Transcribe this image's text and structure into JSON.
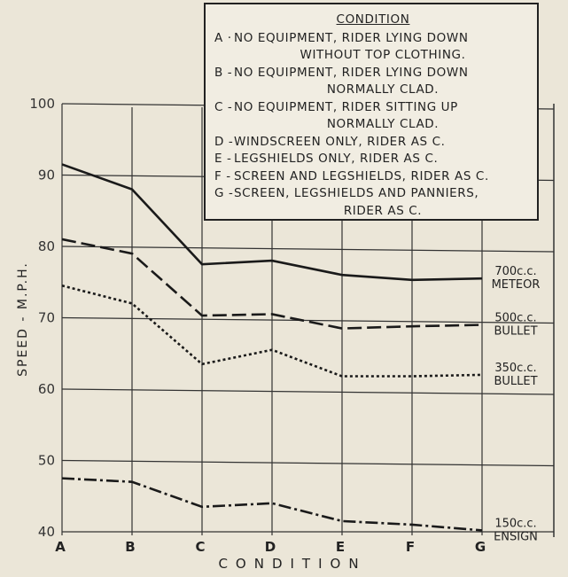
{
  "chart_data": {
    "type": "line",
    "title": "",
    "xlabel": "CONDITION",
    "ylabel": "SPEED - M.P.H.",
    "categories": [
      "A",
      "B",
      "C",
      "D",
      "E",
      "F",
      "G"
    ],
    "ylim": [
      40,
      100
    ],
    "yticks": [
      "40",
      "50",
      "60",
      "70",
      "80",
      "90",
      "100"
    ],
    "grid": true,
    "series": [
      {
        "name": "700c.c. METEOR",
        "label_top": "700c.c.",
        "label_bottom": "METEOR",
        "style": "solid",
        "values": [
          91.5,
          88,
          77.5,
          78,
          76,
          75.3,
          75.5
        ]
      },
      {
        "name": "500c.c. BULLET",
        "label_top": "500c.c.",
        "label_bottom": "BULLET",
        "style": "dashed",
        "values": [
          81,
          79,
          70.3,
          70.5,
          68.5,
          68.8,
          69
        ]
      },
      {
        "name": "350c.c. BULLET",
        "label_top": "350c.c.",
        "label_bottom": "BULLET",
        "style": "dotted",
        "values": [
          74.5,
          72,
          63.5,
          65.5,
          61.8,
          61.8,
          62
        ]
      },
      {
        "name": "150c.c. ENSIGN",
        "label_top": "150c.c.",
        "label_bottom": "ENSIGN",
        "style": "dashdot",
        "values": [
          47.5,
          47,
          43.5,
          44,
          41.5,
          41,
          40.2
        ]
      }
    ],
    "legend": {
      "title": "CONDITION",
      "items": [
        {
          "key": "A",
          "sep": "·",
          "line1": "NO EQUIPMENT, RIDER LYING DOWN",
          "line2": "WITHOUT TOP CLOTHING."
        },
        {
          "key": "B",
          "sep": "-",
          "line1": "NO EQUIPMENT, RIDER LYING DOWN",
          "line2": "NORMALLY CLAD."
        },
        {
          "key": "C",
          "sep": "-",
          "line1": "NO EQUIPMENT, RIDER SITTING UP",
          "line2": "NORMALLY CLAD."
        },
        {
          "key": "D",
          "sep": "-",
          "line1": "WINDSCREEN ONLY, RIDER AS C.",
          "line2": ""
        },
        {
          "key": "E",
          "sep": "-",
          "line1": "LEGSHIELDS ONLY, RIDER AS C.",
          "line2": ""
        },
        {
          "key": "F",
          "sep": "-",
          "line1": "SCREEN AND LEGSHIELDS, RIDER AS C.",
          "line2": ""
        },
        {
          "key": "G",
          "sep": "-",
          "line1": "SCREEN, LEGSHIELDS AND PANNIERS,",
          "line2": "RIDER AS C."
        }
      ]
    }
  }
}
